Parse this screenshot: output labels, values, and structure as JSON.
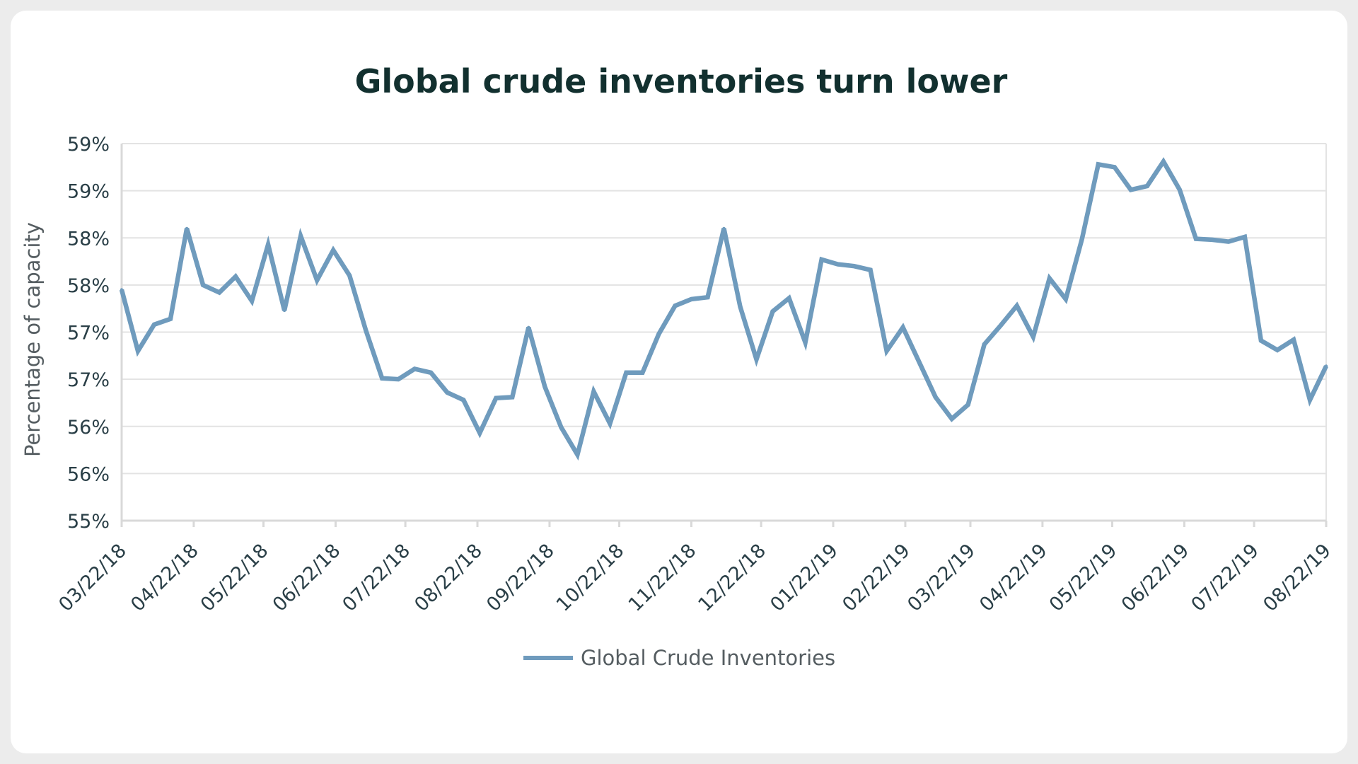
{
  "chart_data": {
    "type": "line",
    "title": "Global crude inventories turn lower",
    "xlabel": "",
    "ylabel": "Percentage of capacity",
    "ylim": [
      55.0,
      59.0
    ],
    "ytick_values": [
      55.0,
      55.5,
      56.0,
      56.5,
      57.0,
      57.5,
      58.0,
      58.5,
      59.0
    ],
    "ytick_labels": [
      "55%",
      "56%",
      "56%",
      "57%",
      "57%",
      "58%",
      "58%",
      "59%",
      "59%"
    ],
    "xlim": [
      "2018-03-22",
      "2019-08-22"
    ],
    "xticks": [
      {
        "label": "03/22/18",
        "date": "2018-03-22"
      },
      {
        "label": "04/22/18",
        "date": "2018-04-22"
      },
      {
        "label": "05/22/18",
        "date": "2018-05-22"
      },
      {
        "label": "06/22/18",
        "date": "2018-06-22"
      },
      {
        "label": "07/22/18",
        "date": "2018-07-22"
      },
      {
        "label": "08/22/18",
        "date": "2018-08-22"
      },
      {
        "label": "09/22/18",
        "date": "2018-09-22"
      },
      {
        "label": "10/22/18",
        "date": "2018-10-22"
      },
      {
        "label": "11/22/18",
        "date": "2018-11-22"
      },
      {
        "label": "12/22/18",
        "date": "2018-12-22"
      },
      {
        "label": "01/22/19",
        "date": "2019-01-22"
      },
      {
        "label": "02/22/19",
        "date": "2019-02-22"
      },
      {
        "label": "03/22/19",
        "date": "2019-03-22"
      },
      {
        "label": "04/22/19",
        "date": "2019-04-22"
      },
      {
        "label": "05/22/19",
        "date": "2019-05-22"
      },
      {
        "label": "06/22/19",
        "date": "2019-06-22"
      },
      {
        "label": "07/22/19",
        "date": "2019-07-22"
      },
      {
        "label": "08/22/19",
        "date": "2019-08-22"
      }
    ],
    "grid": true,
    "legend_position": "bottom",
    "series": [
      {
        "name": "Global Crude Inventories",
        "color": "#6f9bbd",
        "x": [
          "2018-03-22",
          "2018-03-29",
          "2018-04-05",
          "2018-04-12",
          "2018-04-19",
          "2018-04-26",
          "2018-05-03",
          "2018-05-10",
          "2018-05-17",
          "2018-05-24",
          "2018-05-31",
          "2018-06-07",
          "2018-06-14",
          "2018-06-21",
          "2018-06-28",
          "2018-07-05",
          "2018-07-12",
          "2018-07-19",
          "2018-07-26",
          "2018-08-02",
          "2018-08-09",
          "2018-08-16",
          "2018-08-23",
          "2018-08-30",
          "2018-09-06",
          "2018-09-13",
          "2018-09-20",
          "2018-09-27",
          "2018-10-04",
          "2018-10-11",
          "2018-10-18",
          "2018-10-25",
          "2018-11-01",
          "2018-11-08",
          "2018-11-15",
          "2018-11-22",
          "2018-11-29",
          "2018-12-06",
          "2018-12-13",
          "2018-12-20",
          "2018-12-27",
          "2019-01-03",
          "2019-01-10",
          "2019-01-17",
          "2019-01-24",
          "2019-01-31",
          "2019-02-07",
          "2019-02-14",
          "2019-02-21",
          "2019-02-28",
          "2019-03-07",
          "2019-03-14",
          "2019-03-21",
          "2019-03-28",
          "2019-04-04",
          "2019-04-11",
          "2019-04-18",
          "2019-04-25",
          "2019-05-02",
          "2019-05-09",
          "2019-05-16",
          "2019-05-23",
          "2019-05-30",
          "2019-06-06",
          "2019-06-13",
          "2019-06-20",
          "2019-06-27",
          "2019-07-04",
          "2019-07-11",
          "2019-07-18",
          "2019-07-25",
          "2019-08-01",
          "2019-08-08",
          "2019-08-15",
          "2019-08-22"
        ],
        "values": [
          57.45,
          56.8,
          57.08,
          57.14,
          58.1,
          57.5,
          57.42,
          57.59,
          57.33,
          57.93,
          57.23,
          58.02,
          57.55,
          57.87,
          57.6,
          57.02,
          56.51,
          56.5,
          56.61,
          56.57,
          56.36,
          56.28,
          55.93,
          56.3,
          56.31,
          57.05,
          56.42,
          55.99,
          55.7,
          56.37,
          56.03,
          56.57,
          56.57,
          56.98,
          57.28,
          57.35,
          57.37,
          58.1,
          57.27,
          56.71,
          57.22,
          57.36,
          56.89,
          57.77,
          57.72,
          57.7,
          57.66,
          56.8,
          57.05,
          56.68,
          56.31,
          56.08,
          56.23,
          56.87,
          57.07,
          57.28,
          56.95,
          57.57,
          57.35,
          57.99,
          58.78,
          58.75,
          58.51,
          58.55,
          58.81,
          58.51,
          57.99,
          57.98,
          57.96,
          58.01,
          56.91,
          56.81,
          56.92,
          56.28,
          56.64
        ]
      }
    ]
  }
}
